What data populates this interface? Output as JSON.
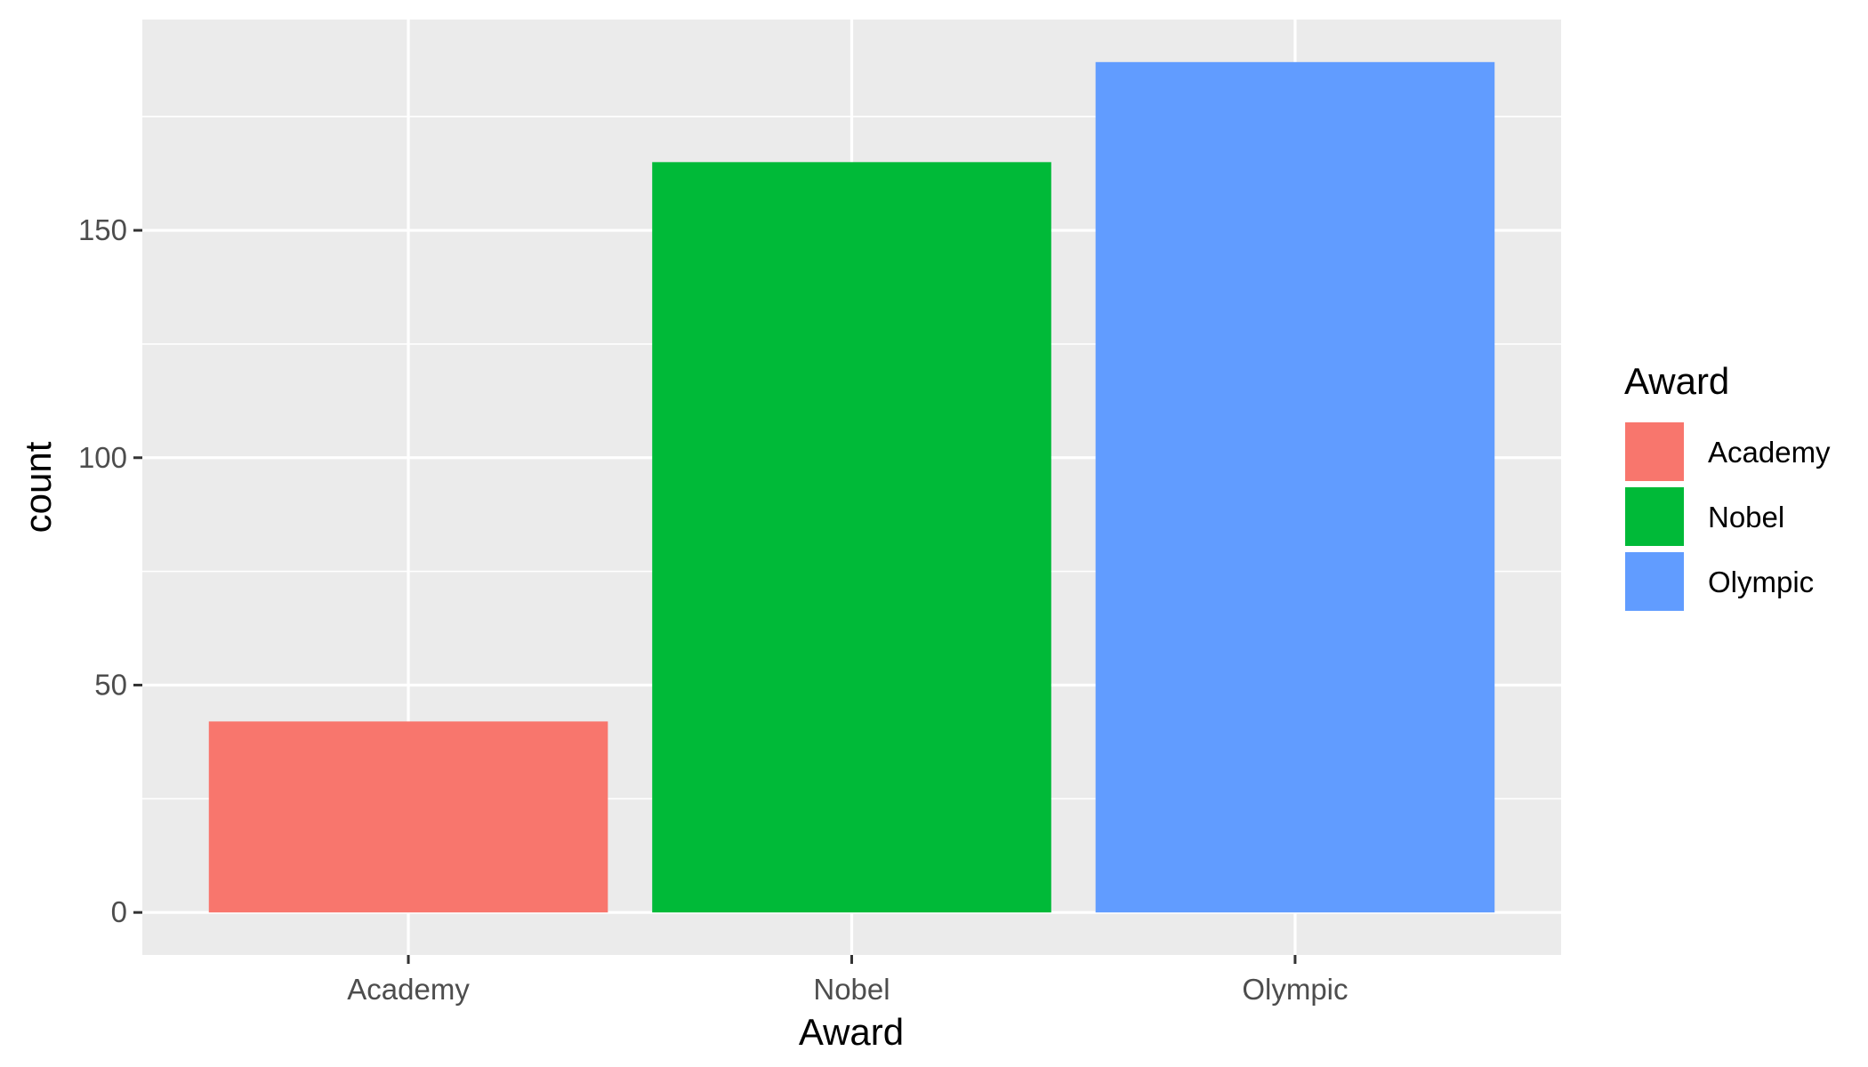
{
  "chart_data": {
    "type": "bar",
    "categories": [
      "Academy",
      "Nobel",
      "Olympic"
    ],
    "values": [
      42,
      165,
      187
    ],
    "colors": [
      "#F8766D",
      "#00BA38",
      "#619CFF"
    ],
    "xlabel": "Award",
    "ylabel": "count",
    "yticks": [
      0,
      50,
      100,
      150
    ],
    "ylim": [
      -9.35,
      196.35
    ],
    "grid": true,
    "legend": {
      "title": "Award",
      "placement": "right",
      "entries": [
        "Academy",
        "Nobel",
        "Olympic"
      ]
    },
    "panel_color": "#EBEBEB"
  }
}
